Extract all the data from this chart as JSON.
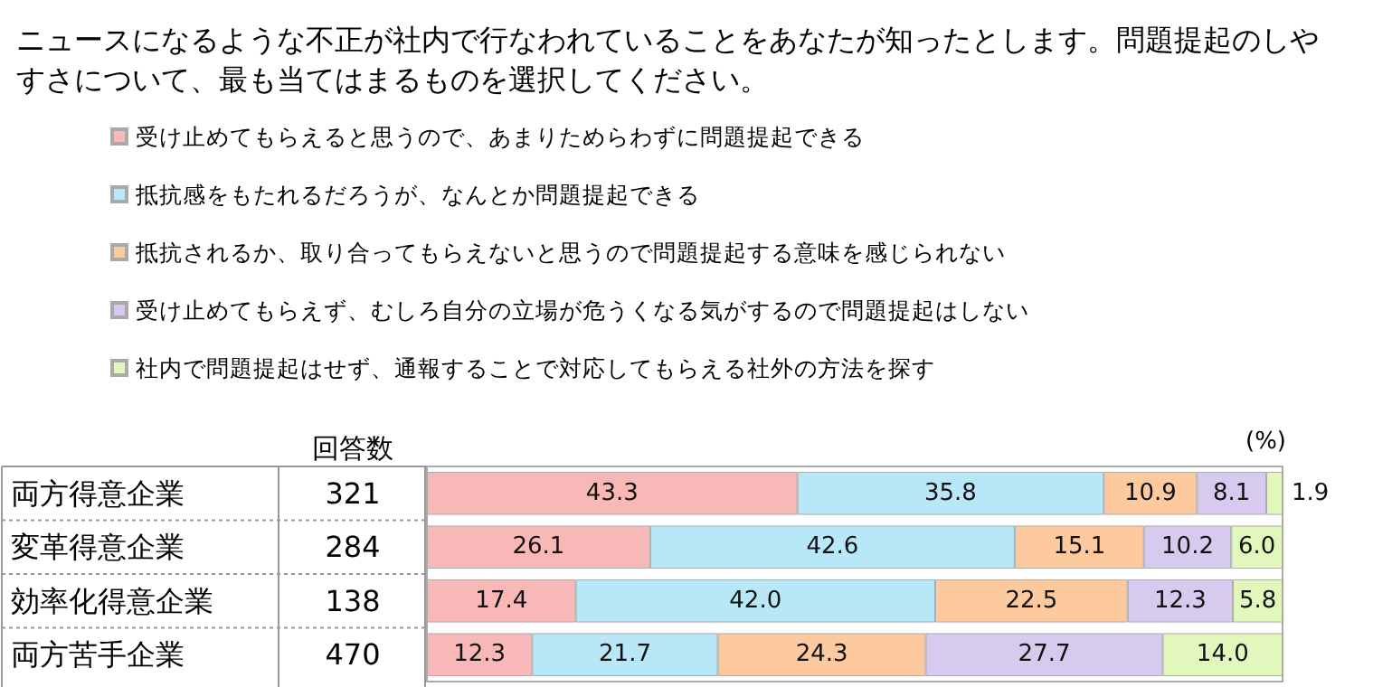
{
  "chart_data": {
    "type": "bar",
    "orientation": "horizontal",
    "stacked": true,
    "title": "ニュースになるような不正が社内で行なわれていることをあなたが知ったとします。問題提起のしやすさについて、最も当てはまるものを選択してください。",
    "categories": [
      "両方得意企業",
      "変革得意企業",
      "効率化得意企業",
      "両方苦手企業"
    ],
    "series": [
      {
        "name": "受け止めてもらえると思うので、あまりためらわずに問題提起できる",
        "color": "#f9b8b8",
        "values": [
          43.3,
          26.1,
          17.4,
          12.3
        ],
        "value_labels": [
          "43.3",
          "26.1",
          "17.4",
          "12.3"
        ]
      },
      {
        "name": "抵抗感をもたれるだろうが、なんとか問題提起できる",
        "color": "#b8e8f8",
        "values": [
          35.8,
          42.6,
          42.0,
          21.7
        ],
        "value_labels": [
          "35.8",
          "42.6",
          "42.0",
          "21.7"
        ]
      },
      {
        "name": "抵抗されるか、取り合ってもらえないと思うので問題提起する意味を感じられない",
        "color": "#fcca9e",
        "values": [
          10.9,
          15.1,
          22.5,
          24.3
        ],
        "value_labels": [
          "10.9",
          "15.1",
          "22.5",
          "24.3"
        ]
      },
      {
        "name": "受け止めてもらえず、むしろ自分の立場が危うくなる気がするので問題提起はしない",
        "color": "#d6cbee",
        "values": [
          8.1,
          10.2,
          12.3,
          27.7
        ],
        "value_labels": [
          "8.1",
          "10.2",
          "12.3",
          "27.7"
        ]
      },
      {
        "name": "社内で問題提起はせず、通報することで対応してもらえる社外の方法を探す",
        "color": "#e2f7bc",
        "values": [
          1.9,
          6.0,
          5.8,
          14.0
        ],
        "value_labels": [
          "1.9",
          "6.0",
          "5.8",
          "14.0"
        ]
      }
    ],
    "xlim": [
      0,
      100
    ],
    "tick_labels": "y",
    "legend": "top left",
    "grid": false,
    "annotations": [
      "回答数",
      "(%)",
      "321",
      "284",
      "138",
      "470"
    ]
  }
}
